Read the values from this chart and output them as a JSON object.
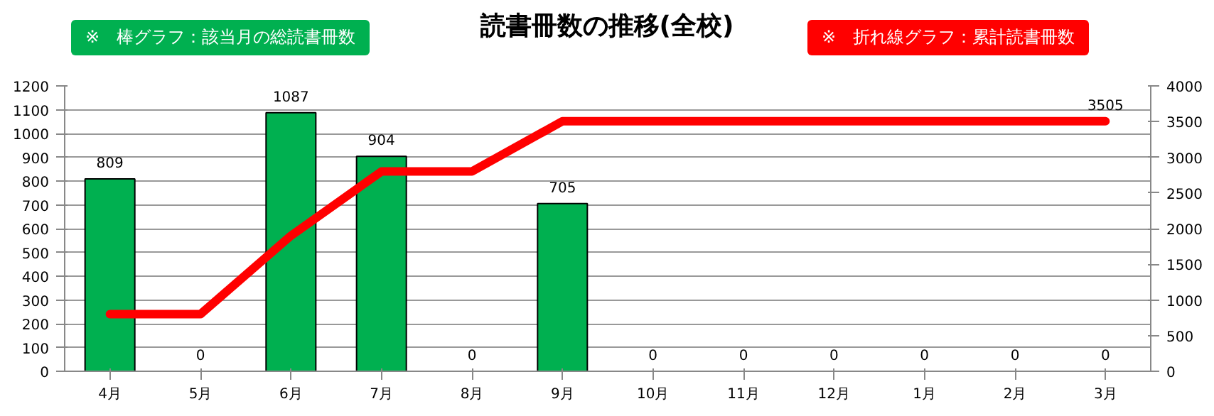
{
  "chart_data": {
    "type": "bar",
    "title": "読書冊数の推移(全校)",
    "categories": [
      "4月",
      "5月",
      "6月",
      "7月",
      "8月",
      "9月",
      "10月",
      "11月",
      "12月",
      "1月",
      "2月",
      "3月"
    ],
    "ylim": [
      0,
      1200
    ],
    "yticks": [
      0,
      100,
      200,
      300,
      400,
      500,
      600,
      700,
      800,
      900,
      1000,
      1100,
      1200
    ],
    "y2lim": [
      0,
      4000
    ],
    "y2ticks": [
      0,
      500,
      1000,
      1500,
      2000,
      2500,
      3000,
      3500,
      4000
    ],
    "grid": "y",
    "series": [
      {
        "name": "※　棒グラフ：該当月の総読書冊数",
        "color": "#00b050",
        "values": [
          809,
          0,
          1087,
          904,
          0,
          705,
          0,
          0,
          0,
          0,
          0,
          0
        ],
        "value_labels": [
          "809",
          "0",
          "1087",
          "904",
          "0",
          "705",
          "0",
          "0",
          "0",
          "0",
          "0",
          "0"
        ]
      },
      {
        "name": "※　折れ線グラフ：累計読書冊数",
        "type": "line",
        "axis": "y2",
        "color": "#ff0000",
        "values": [
          800,
          800,
          1900,
          2800,
          2800,
          3505,
          3505,
          3505,
          3505,
          3505,
          3505,
          3505
        ],
        "value_labels": [
          null,
          null,
          null,
          null,
          null,
          null,
          null,
          null,
          null,
          null,
          null,
          "3505"
        ]
      }
    ]
  }
}
